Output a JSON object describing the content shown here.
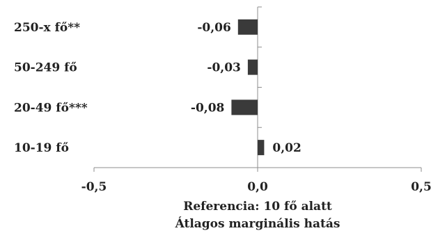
{
  "chart_data": {
    "type": "bar",
    "orientation": "horizontal",
    "categories": [
      "250-x fő**",
      "50-249 fő",
      "20-49 fő***",
      "10-19 fő"
    ],
    "values": [
      -0.06,
      -0.03,
      -0.08,
      0.02
    ],
    "data_labels": [
      "-0,06",
      "-0,03",
      "-0,08",
      "0,02"
    ],
    "xlim": [
      -0.5,
      0.5
    ],
    "x_ticks": [
      -0.5,
      0.0,
      0.5
    ],
    "x_tick_labels": [
      "-0,5",
      "0,0",
      "0,5"
    ],
    "xlabel_lines": [
      "Referencia: 10 fő alatt",
      "Átlagos marginális hatás"
    ],
    "grid": false,
    "legend": "none",
    "colors": {
      "bar": "#3a3a3a",
      "axis": "#8c8c8c",
      "text": "#222222"
    }
  }
}
